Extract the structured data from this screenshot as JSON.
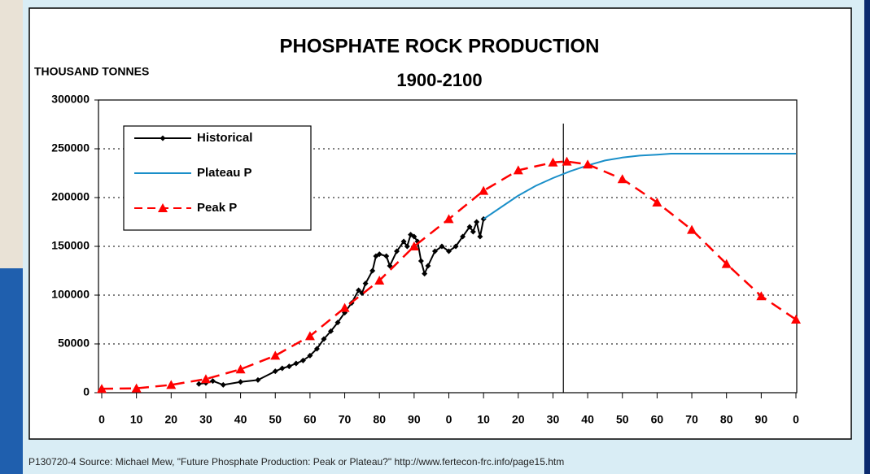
{
  "chart_data": {
    "type": "line",
    "title": "PHOSPHATE ROCK PRODUCTION",
    "subtitle": "1900-2100",
    "y_label": "THOUSAND TONNES",
    "source": "P130720-4 Source: Michael Mew, \"Future Phosphate Production: Peak or Plateau?\" http://www.fertecon-frc.info/page15.htm",
    "xlim": [
      1900,
      2100
    ],
    "xticks": [
      {
        "value": 1900,
        "label": "0"
      },
      {
        "value": 1910,
        "label": "10"
      },
      {
        "value": 1920,
        "label": "20"
      },
      {
        "value": 1930,
        "label": "30"
      },
      {
        "value": 1940,
        "label": "40"
      },
      {
        "value": 1950,
        "label": "50"
      },
      {
        "value": 1960,
        "label": "60"
      },
      {
        "value": 1970,
        "label": "70"
      },
      {
        "value": 1980,
        "label": "80"
      },
      {
        "value": 1990,
        "label": "90"
      },
      {
        "value": 2000,
        "label": "0"
      },
      {
        "value": 2010,
        "label": "10"
      },
      {
        "value": 2020,
        "label": "20"
      },
      {
        "value": 2030,
        "label": "30"
      },
      {
        "value": 2040,
        "label": "40"
      },
      {
        "value": 2050,
        "label": "50"
      },
      {
        "value": 2060,
        "label": "60"
      },
      {
        "value": 2070,
        "label": "70"
      },
      {
        "value": 2080,
        "label": "80"
      },
      {
        "value": 2090,
        "label": "90"
      },
      {
        "value": 2100,
        "label": "0"
      }
    ],
    "ylim": [
      0,
      300000
    ],
    "yticks": [
      0,
      50000,
      100000,
      150000,
      200000,
      250000,
      300000
    ],
    "grid": true,
    "vline_x": 2033,
    "legend": "upper left",
    "series": [
      {
        "name": "Historical",
        "color": "#000000",
        "marker": "diamond",
        "dash": false,
        "x": [
          1928,
          1930,
          1932,
          1935,
          1940,
          1945,
          1950,
          1952,
          1954,
          1956,
          1958,
          1960,
          1962,
          1964,
          1966,
          1968,
          1970,
          1972,
          1974,
          1975,
          1976,
          1978,
          1979,
          1980,
          1982,
          1983,
          1985,
          1987,
          1988,
          1989,
          1990,
          1991,
          1992,
          1993,
          1994,
          1996,
          1998,
          2000,
          2002,
          2004,
          2006,
          2007,
          2008,
          2009,
          2010
        ],
        "values": [
          9000,
          10000,
          12000,
          8000,
          11000,
          13000,
          22000,
          25000,
          27000,
          30000,
          33000,
          38000,
          45000,
          55000,
          63000,
          72000,
          82000,
          92000,
          105000,
          102000,
          112000,
          125000,
          140000,
          142000,
          140000,
          130000,
          145000,
          155000,
          150000,
          162000,
          160000,
          155000,
          135000,
          122000,
          130000,
          145000,
          150000,
          145000,
          150000,
          160000,
          170000,
          165000,
          175000,
          160000,
          178000
        ]
      },
      {
        "name": "Plateau P",
        "color": "#1a8fc9",
        "marker": "none",
        "dash": false,
        "x": [
          2010,
          2015,
          2020,
          2025,
          2030,
          2035,
          2040,
          2045,
          2050,
          2055,
          2060,
          2064,
          2100
        ],
        "values": [
          178000,
          190000,
          202000,
          212000,
          220000,
          227000,
          233000,
          238000,
          241000,
          243000,
          244000,
          245000,
          245000
        ]
      },
      {
        "name": "Peak P",
        "color": "#ff0000",
        "marker": "triangle",
        "dash": true,
        "x": [
          1900,
          1910,
          1920,
          1930,
          1940,
          1950,
          1960,
          1970,
          1980,
          1990,
          2000,
          2010,
          2020,
          2030,
          2034,
          2040,
          2050,
          2060,
          2070,
          2080,
          2090,
          2100
        ],
        "values": [
          4000,
          4500,
          8000,
          14000,
          24000,
          38000,
          58000,
          87000,
          115000,
          150000,
          178000,
          207000,
          228000,
          236000,
          237000,
          234000,
          219000,
          195000,
          167000,
          132000,
          99000,
          75000
        ]
      }
    ]
  }
}
